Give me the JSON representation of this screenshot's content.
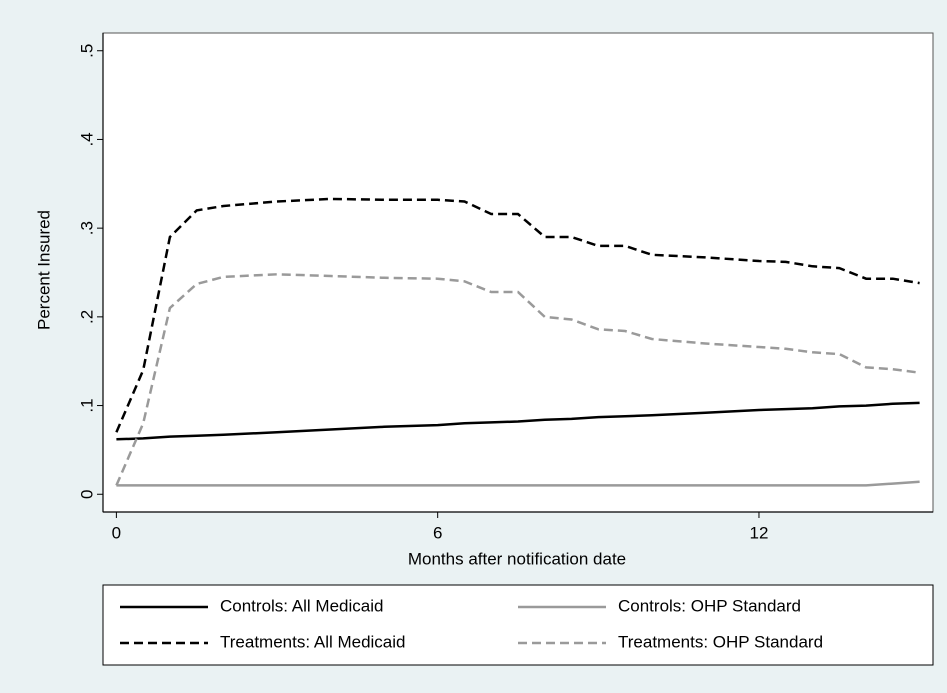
{
  "chart_data": {
    "type": "line",
    "x_label": "Months after notification date",
    "y_label": "Percent Insured",
    "x": [
      0,
      0.5,
      1,
      1.5,
      2,
      3,
      4,
      5,
      6,
      6.5,
      7,
      7.5,
      8,
      8.5,
      9,
      9.5,
      10,
      11,
      12,
      12.5,
      13,
      13.5,
      14,
      14.5,
      15
    ],
    "series": [
      {
        "name": "Controls: All Medicaid",
        "color": "#000000",
        "style": "solid",
        "values": [
          0.062,
          0.063,
          0.065,
          0.066,
          0.067,
          0.07,
          0.073,
          0.076,
          0.078,
          0.08,
          0.081,
          0.082,
          0.084,
          0.085,
          0.087,
          0.088,
          0.089,
          0.092,
          0.095,
          0.096,
          0.097,
          0.099,
          0.1,
          0.102,
          0.103
        ]
      },
      {
        "name": "Controls: OHP Standard",
        "color": "#9a9a9a",
        "style": "solid",
        "values": [
          0.01,
          0.01,
          0.01,
          0.01,
          0.01,
          0.01,
          0.01,
          0.01,
          0.01,
          0.01,
          0.01,
          0.01,
          0.01,
          0.01,
          0.01,
          0.01,
          0.01,
          0.01,
          0.01,
          0.01,
          0.01,
          0.01,
          0.01,
          0.012,
          0.014
        ]
      },
      {
        "name": "Treatments: All Medicaid",
        "color": "#000000",
        "style": "dashed",
        "values": [
          0.07,
          0.14,
          0.29,
          0.32,
          0.325,
          0.33,
          0.333,
          0.332,
          0.332,
          0.33,
          0.316,
          0.316,
          0.29,
          0.29,
          0.28,
          0.28,
          0.27,
          0.267,
          0.263,
          0.262,
          0.257,
          0.255,
          0.243,
          0.243,
          0.238
        ]
      },
      {
        "name": "Treatments: OHP Standard",
        "color": "#9a9a9a",
        "style": "dashed",
        "values": [
          0.01,
          0.08,
          0.21,
          0.237,
          0.245,
          0.248,
          0.246,
          0.244,
          0.243,
          0.24,
          0.228,
          0.228,
          0.2,
          0.197,
          0.186,
          0.184,
          0.175,
          0.17,
          0.166,
          0.164,
          0.16,
          0.158,
          0.143,
          0.141,
          0.137
        ]
      }
    ],
    "xlim": [
      -0.25,
      15.25
    ],
    "xticks": [
      0,
      6,
      12
    ],
    "ylim": [
      -0.02,
      0.52
    ],
    "yticks": [
      0,
      {
        "value": 0.1,
        "label": ".1"
      },
      {
        "value": 0.2,
        "label": ".2"
      },
      {
        "value": 0.3,
        "label": ".3"
      },
      {
        "value": 0.4,
        "label": ".4"
      },
      {
        "value": 0.5,
        "label": ".5"
      }
    ],
    "grid": false,
    "legend_position": "bottom"
  }
}
